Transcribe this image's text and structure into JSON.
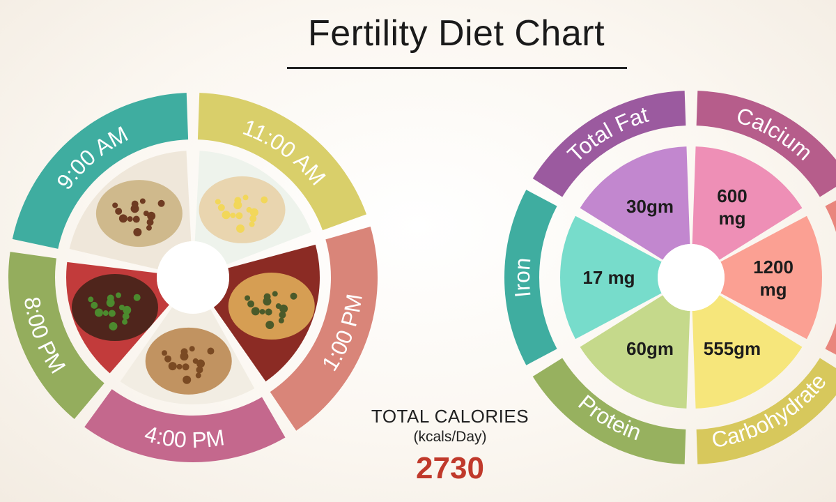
{
  "title": "Fertility Diet Chart",
  "meal_times": [
    {
      "label": "9:00 AM",
      "color": "#3fada0",
      "food": "oatmeal-with-raisins"
    },
    {
      "label": "11:00 AM",
      "color": "#d9cf6a",
      "food": "banana-smoothie"
    },
    {
      "label": "1:00 PM",
      "color": "#d98579",
      "food": "omelette"
    },
    {
      "label": "4:00 PM",
      "color": "#c4688d",
      "food": "mixed-nuts"
    },
    {
      "label": "8:00 PM",
      "color": "#94ad5d",
      "food": "lentil-soup"
    }
  ],
  "total_calories": {
    "title": "TOTAL CALORIES",
    "unit": "(kcals/Day)",
    "value": "2730",
    "value_color": "#c0392b"
  },
  "nutrients": [
    {
      "label": "Total Fat",
      "value": "30gm",
      "ring_color": "#9b5a9f",
      "fill_color": "#c287cf"
    },
    {
      "label": "Calcium",
      "value": "600 mg",
      "ring_color": "#b65d8b",
      "fill_color": "#ee8fb6"
    },
    {
      "label": "",
      "value": "1200 mg",
      "ring_color": "#e9867d",
      "fill_color": "#fba093"
    },
    {
      "label": "Carbohydrate",
      "value": "555gm",
      "ring_color": "#d7c85c",
      "fill_color": "#f6e67b"
    },
    {
      "label": "Protein",
      "value": "60gm",
      "ring_color": "#97b15f",
      "fill_color": "#c5d98b"
    },
    {
      "label": "Iron",
      "value": "17 mg",
      "ring_color": "#3fada0",
      "fill_color": "#77dccb"
    }
  ]
}
